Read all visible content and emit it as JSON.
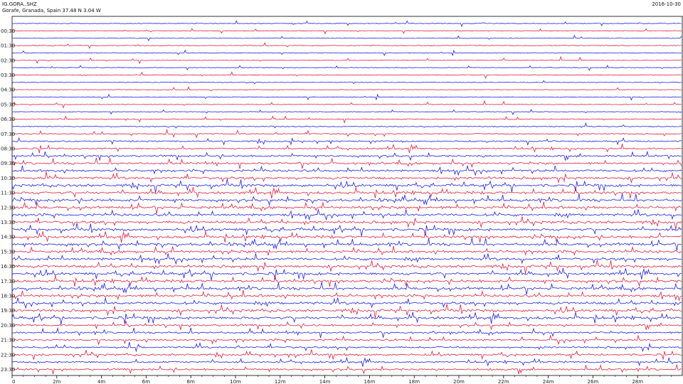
{
  "header": {
    "station": "IG.GORA..SHZ",
    "location": "Gorafe, Granada, Spain  37.48 N 3.04 W",
    "date": "2016-10-30"
  },
  "chart_data": {
    "type": "line",
    "title": "IG.GORA..SHZ",
    "subtitle": "Gorafe, Granada, Spain  37.48 N 3.04 W",
    "date": "2016-10-30",
    "xlabel": "",
    "ylabel": "",
    "x_unit": "minutes",
    "xlim": [
      0,
      30
    ],
    "x_ticks": [
      "0",
      "2m",
      "4m",
      "6m",
      "8m",
      "10m",
      "12m",
      "14m",
      "16m",
      "18m",
      "20m",
      "22m",
      "24m",
      "26m",
      "28m"
    ],
    "y_tick_labels": [
      "00:30",
      "01:30",
      "02:30",
      "03:30",
      "04:30",
      "05:30",
      "06:30",
      "07:30",
      "08:30",
      "09:30",
      "10:30",
      "11:30",
      "12:30",
      "13:30",
      "14:30",
      "15:30",
      "16:30",
      "17:30",
      "18:30",
      "19:30",
      "20:30",
      "21:30",
      "22:30",
      "23:30"
    ],
    "trace_count": 48,
    "trace_interval_minutes": 30,
    "colors": [
      "#2222dd",
      "#dd2244"
    ],
    "grid": false,
    "legend": "none"
  }
}
